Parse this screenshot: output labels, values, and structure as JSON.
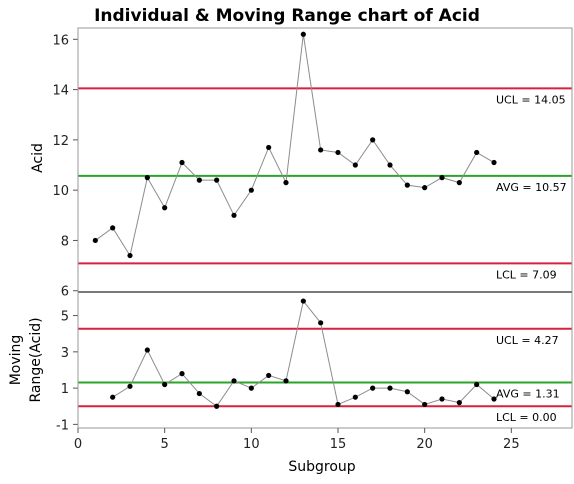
{
  "chart_data": {
    "type": "line",
    "title": "Individual & Moving Range chart of Acid",
    "xlabel": "Subgroup",
    "x_ticks": [
      "0",
      "5",
      "10",
      "15",
      "20",
      "25"
    ],
    "xlim": [
      0,
      28.5
    ],
    "individual": {
      "ylabel": "Acid",
      "ylim": [
        5.95,
        16.45
      ],
      "y_ticks": [
        "6",
        "8",
        "10",
        "12",
        "14",
        "16"
      ],
      "x": [
        1,
        2,
        3,
        4,
        5,
        6,
        7,
        8,
        9,
        10,
        11,
        12,
        13,
        14,
        15,
        16,
        17,
        18,
        19,
        20,
        21,
        22,
        23,
        24
      ],
      "values": [
        8.0,
        8.5,
        7.4,
        10.5,
        9.3,
        11.1,
        10.4,
        10.4,
        9.0,
        10.0,
        11.7,
        10.3,
        16.2,
        11.6,
        11.5,
        11.0,
        12.0,
        11.0,
        10.2,
        10.1,
        10.5,
        10.3,
        11.5,
        11.1
      ],
      "limits": [
        {
          "label": "UCL = 14.05",
          "value": 14.05,
          "color": "#d8213f"
        },
        {
          "label": "AVG = 10.57",
          "value": 10.57,
          "color": "#2aa52a"
        },
        {
          "label": "LCL = 7.09",
          "value": 7.09,
          "color": "#d8213f"
        }
      ]
    },
    "moving_range": {
      "ylabel": [
        "Moving",
        "Range(Acid)"
      ],
      "ylim": [
        -1.2,
        6.3
      ],
      "y_ticks": [
        "-1",
        "1",
        "3",
        "5"
      ],
      "x": [
        2,
        3,
        4,
        5,
        6,
        7,
        8,
        9,
        10,
        11,
        12,
        13,
        14,
        15,
        16,
        17,
        18,
        19,
        20,
        21,
        22,
        23,
        24
      ],
      "values": [
        0.5,
        1.1,
        3.1,
        1.2,
        1.8,
        0.7,
        0.0,
        1.4,
        1.0,
        1.7,
        1.4,
        5.8,
        4.6,
        0.1,
        0.5,
        1.0,
        1.0,
        0.8,
        0.1,
        0.4,
        0.2,
        1.2,
        0.4
      ],
      "limits": [
        {
          "label": "UCL = 4.27",
          "value": 4.27,
          "color": "#d8213f"
        },
        {
          "label": "AVG = 1.31",
          "value": 1.31,
          "color": "#2aa52a"
        },
        {
          "label": "LCL = 0.00",
          "value": 0.0,
          "color": "#d8213f"
        }
      ]
    },
    "line_color": "#8c8c8c",
    "marker_color": "#000000",
    "frame_color": "#9a9a9a"
  }
}
